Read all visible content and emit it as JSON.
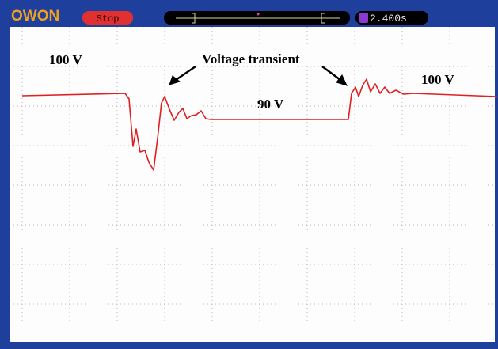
{
  "header": {
    "logo": "OWON",
    "status": "Stop",
    "time": "2.400s"
  },
  "annotations": {
    "left_level": "100 V",
    "transient": "Voltage transient",
    "middle_level": "90 V",
    "right_level": "100 V"
  }
}
